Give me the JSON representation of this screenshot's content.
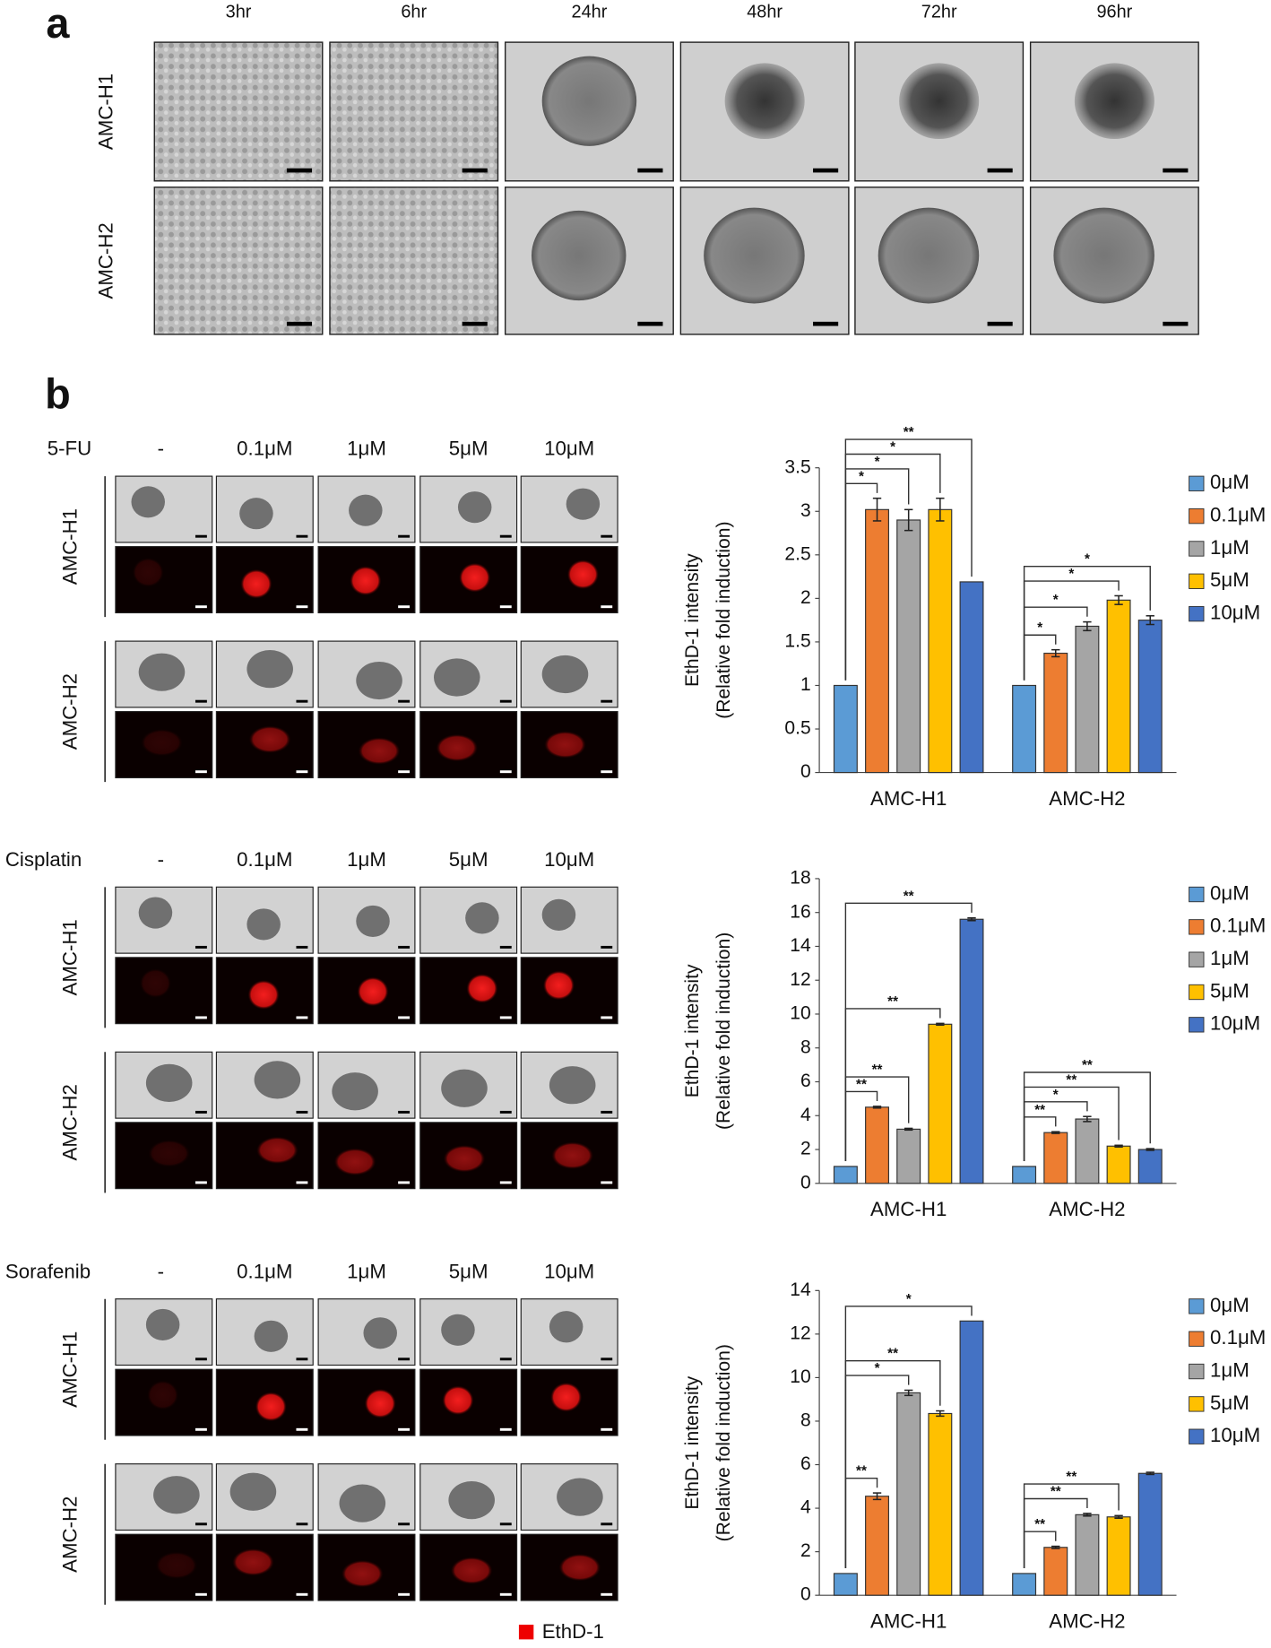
{
  "panel_a": {
    "label": "a",
    "columns": [
      "3hr",
      "6hr",
      "24hr",
      "48hr",
      "72hr",
      "96hr"
    ],
    "rows": [
      "AMC-H1",
      "AMC-H2"
    ]
  },
  "panel_b": {
    "label": "b",
    "legend": "EthD-1",
    "groups": [
      {
        "drug": "5-FU",
        "concentrations": [
          "-",
          "0.1μM",
          "1μM",
          "5μM",
          "10μM"
        ],
        "rows": [
          "AMC-H1",
          "AMC-H2"
        ]
      },
      {
        "drug": "Cisplatin",
        "concentrations": [
          "-",
          "0.1μM",
          "1μM",
          "5μM",
          "10μM"
        ],
        "rows": [
          "AMC-H1",
          "AMC-H2"
        ]
      },
      {
        "drug": "Sorafenib",
        "concentrations": [
          "-",
          "0.1μM",
          "1μM",
          "5μM",
          "10μM"
        ],
        "rows": [
          "AMC-H1",
          "AMC-H2"
        ]
      }
    ]
  },
  "chart_data": [
    {
      "type": "bar",
      "ylabel": [
        "EthD-1 intensity",
        "(Relative fold induction)"
      ],
      "categories": [
        "AMC-H1",
        "AMC-H2"
      ],
      "ylim": [
        0,
        3.5
      ],
      "yticks": [
        0,
        0.5,
        1,
        1.5,
        2,
        2.5,
        3,
        3.5
      ],
      "series": [
        {
          "name": "0μM",
          "color": "#5b9bd5",
          "values": [
            1,
            1
          ],
          "errors": [
            0,
            0
          ]
        },
        {
          "name": "0.1μM",
          "color": "#ed7d31",
          "values": [
            3.02,
            1.37
          ],
          "errors": [
            0.13,
            0.04
          ]
        },
        {
          "name": "1μM",
          "color": "#a5a5a5",
          "values": [
            2.9,
            1.68
          ],
          "errors": [
            0.12,
            0.05
          ]
        },
        {
          "name": "5μM",
          "color": "#ffc000",
          "values": [
            3.02,
            1.98
          ],
          "errors": [
            0.13,
            0.05
          ]
        },
        {
          "name": "10μM",
          "color": "#4472c4",
          "values": [
            2.19,
            1.75
          ],
          "errors": [
            0,
            0.05
          ]
        }
      ],
      "significance": [
        {
          "category": 0,
          "series": 1,
          "label": "*"
        },
        {
          "category": 0,
          "series": 2,
          "label": "*"
        },
        {
          "category": 0,
          "series": 3,
          "label": "*"
        },
        {
          "category": 0,
          "series": 4,
          "label": "**"
        },
        {
          "category": 1,
          "series": 1,
          "label": "*"
        },
        {
          "category": 1,
          "series": 2,
          "label": "*"
        },
        {
          "category": 1,
          "series": 3,
          "label": "*"
        },
        {
          "category": 1,
          "series": 4,
          "label": "*"
        }
      ]
    },
    {
      "type": "bar",
      "ylabel": [
        "EthD-1 intensity",
        "(Relative fold induction)"
      ],
      "categories": [
        "AMC-H1",
        "AMC-H2"
      ],
      "ylim": [
        0,
        18
      ],
      "yticks": [
        0,
        2,
        4,
        6,
        8,
        10,
        12,
        14,
        16,
        18
      ],
      "series": [
        {
          "name": "0μM",
          "color": "#5b9bd5",
          "values": [
            1,
            1
          ],
          "errors": [
            0,
            0
          ]
        },
        {
          "name": "0.1μM",
          "color": "#ed7d31",
          "values": [
            4.5,
            3.0
          ],
          "errors": [
            0.05,
            0.05
          ]
        },
        {
          "name": "1μM",
          "color": "#a5a5a5",
          "values": [
            3.2,
            3.8
          ],
          "errors": [
            0.05,
            0.15
          ]
        },
        {
          "name": "5μM",
          "color": "#ffc000",
          "values": [
            9.4,
            2.2
          ],
          "errors": [
            0.05,
            0.05
          ]
        },
        {
          "name": "10μM",
          "color": "#4472c4",
          "values": [
            15.6,
            2.0
          ],
          "errors": [
            0.08,
            0.05
          ]
        }
      ],
      "significance": [
        {
          "category": 0,
          "series": 1,
          "label": "**"
        },
        {
          "category": 0,
          "series": 2,
          "label": "**"
        },
        {
          "category": 0,
          "series": 3,
          "label": "**"
        },
        {
          "category": 0,
          "series": 4,
          "label": "**"
        },
        {
          "category": 1,
          "series": 1,
          "label": "**"
        },
        {
          "category": 1,
          "series": 2,
          "label": "*"
        },
        {
          "category": 1,
          "series": 3,
          "label": "**"
        },
        {
          "category": 1,
          "series": 4,
          "label": "**"
        }
      ]
    },
    {
      "type": "bar",
      "ylabel": [
        "EthD-1 intensity",
        "(Relative fold induction)"
      ],
      "categories": [
        "AMC-H1",
        "AMC-H2"
      ],
      "ylim": [
        0,
        14
      ],
      "yticks": [
        0,
        2,
        4,
        6,
        8,
        10,
        12,
        14
      ],
      "series": [
        {
          "name": "0μM",
          "color": "#5b9bd5",
          "values": [
            1,
            1
          ],
          "errors": [
            0,
            0
          ]
        },
        {
          "name": "0.1μM",
          "color": "#ed7d31",
          "values": [
            4.55,
            2.2
          ],
          "errors": [
            0.15,
            0.05
          ]
        },
        {
          "name": "1μM",
          "color": "#a5a5a5",
          "values": [
            9.3,
            3.7
          ],
          "errors": [
            0.12,
            0.06
          ]
        },
        {
          "name": "5μM",
          "color": "#ffc000",
          "values": [
            8.35,
            3.6
          ],
          "errors": [
            0.12,
            0.06
          ]
        },
        {
          "name": "10μM",
          "color": "#4472c4",
          "values": [
            12.6,
            5.6
          ],
          "errors": [
            0,
            0.05
          ]
        }
      ],
      "significance": [
        {
          "category": 0,
          "series": 1,
          "label": "**"
        },
        {
          "category": 0,
          "series": 2,
          "label": "*"
        },
        {
          "category": 0,
          "series": 3,
          "label": "**"
        },
        {
          "category": 0,
          "series": 4,
          "label": "*"
        },
        {
          "category": 1,
          "series": 1,
          "label": "**"
        },
        {
          "category": 1,
          "series": 2,
          "label": "**"
        },
        {
          "category": 1,
          "series": 3,
          "label": "**"
        }
      ]
    }
  ]
}
